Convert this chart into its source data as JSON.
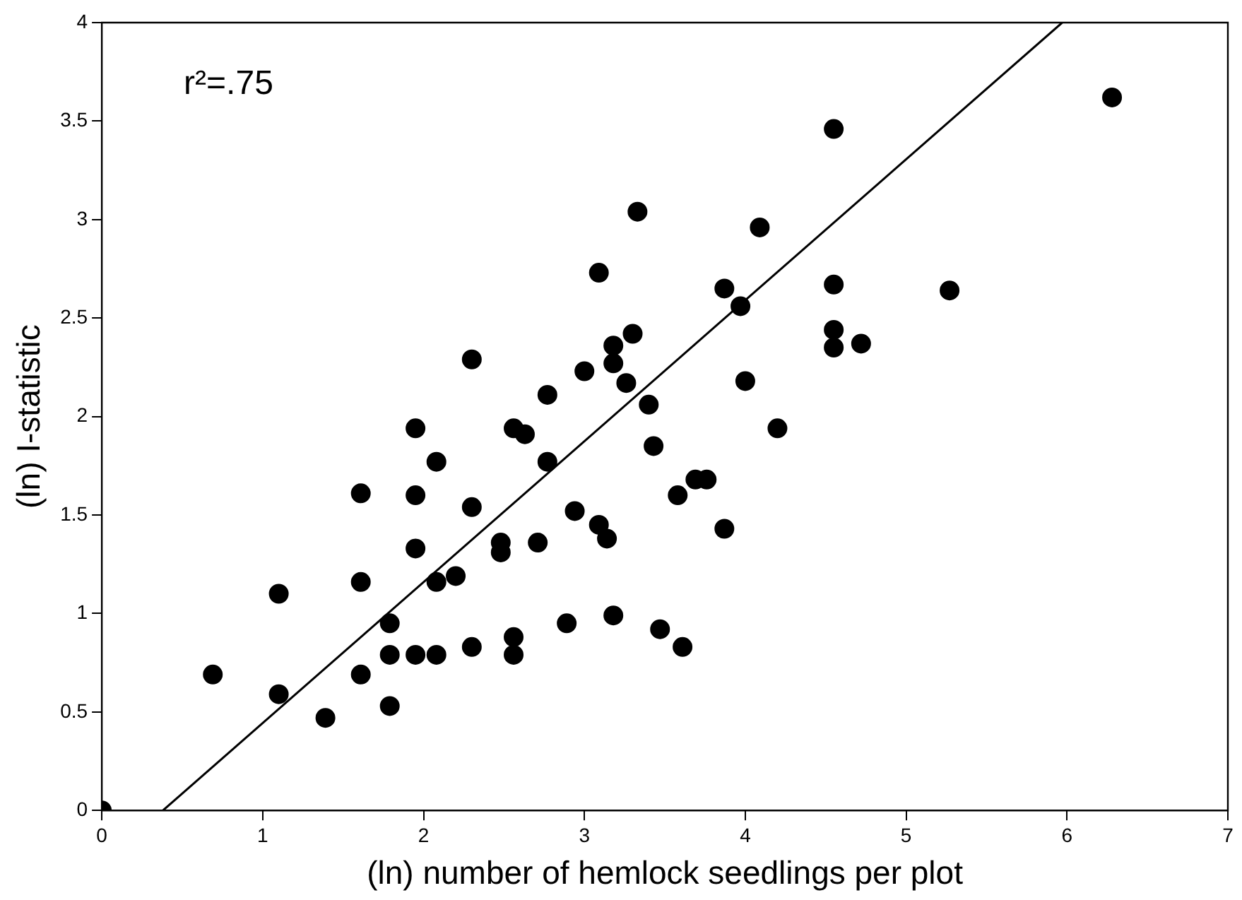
{
  "chart_data": {
    "type": "scatter",
    "xlabel": "(ln) number of hemlock seedlings per plot",
    "ylabel": "(ln) I-statistic",
    "annotations": [
      "r²=.75"
    ],
    "xlim": [
      0,
      7
    ],
    "ylim": [
      0,
      4
    ],
    "xticks": [
      0,
      1,
      2,
      3,
      4,
      5,
      6,
      7
    ],
    "yticks": [
      0,
      0.5,
      1,
      1.5,
      2,
      2.5,
      3,
      3.5,
      4
    ],
    "series": [
      {
        "marker": "circle",
        "color": "#000000",
        "x": [
          0,
          0.69,
          1.1,
          1.1,
          1.39,
          1.61,
          1.61,
          1.61,
          1.79,
          1.79,
          1.79,
          1.95,
          1.95,
          1.95,
          1.95,
          2.08,
          2.08,
          2.08,
          2.2,
          2.3,
          2.3,
          2.3,
          2.48,
          2.48,
          2.56,
          2.56,
          2.56,
          2.63,
          2.71,
          2.77,
          2.77,
          2.89,
          2.94,
          3.0,
          3.09,
          3.09,
          3.14,
          3.18,
          3.18,
          3.18,
          3.26,
          3.3,
          3.33,
          3.4,
          3.43,
          3.47,
          3.58,
          3.61,
          3.69,
          3.76,
          3.87,
          3.87,
          3.97,
          4.0,
          4.09,
          4.2,
          4.55,
          4.55,
          4.55,
          4.55,
          4.72,
          5.27,
          6.28
        ],
        "values": [
          0,
          0.69,
          1.1,
          0.59,
          0.47,
          1.61,
          1.16,
          0.69,
          0.95,
          0.79,
          0.53,
          1.94,
          1.6,
          1.33,
          0.79,
          1.77,
          1.16,
          0.79,
          1.19,
          2.29,
          1.54,
          0.83,
          1.36,
          1.31,
          1.94,
          0.88,
          0.79,
          1.91,
          1.36,
          2.11,
          1.77,
          0.95,
          1.52,
          2.23,
          2.73,
          1.45,
          1.38,
          2.36,
          2.27,
          0.99,
          2.17,
          2.42,
          3.04,
          2.06,
          1.85,
          0.92,
          1.6,
          0.83,
          1.68,
          1.68,
          1.43,
          2.65,
          2.56,
          2.18,
          2.96,
          1.94,
          3.46,
          2.67,
          2.44,
          2.35,
          2.37,
          2.64,
          3.62
        ]
      },
      {
        "type": "line",
        "marker": "none",
        "color": "#000000",
        "x": [
          0.38,
          5.97
        ],
        "values": [
          0,
          4
        ]
      }
    ]
  }
}
